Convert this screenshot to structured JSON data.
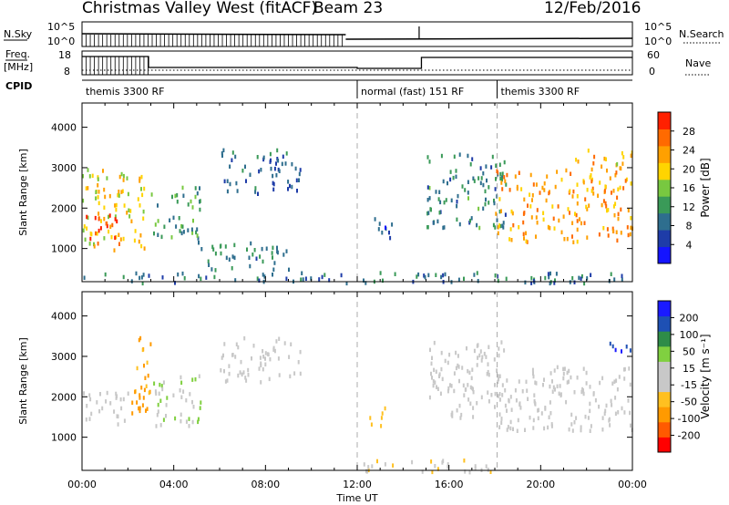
{
  "header": {
    "title": "Christmas Valley West (fitACF)",
    "beam": "Beam 23",
    "date": "12/Feb/2016"
  },
  "top_panels": {
    "nsky_label": "N.Sky",
    "nsky_ticks": [
      "10^5",
      "10^0"
    ],
    "nsearch_label": "N.Search",
    "nsearch_ticks": [
      "10^5",
      "10^0"
    ],
    "freq_label": "Freq.",
    "freq_unit": "[MHz]",
    "freq_ticks": [
      "18",
      "8"
    ],
    "nave_label": "Nave",
    "nave_ticks": [
      "60",
      "0"
    ],
    "cpid_label": "CPID",
    "cpid_segments": [
      {
        "label": "themis 3300 RF",
        "start_hour": 0.0
      },
      {
        "label": "normal (fast) 151 RF",
        "start_hour": 12.0
      },
      {
        "label": "themis 3300 RF",
        "start_hour": 18.1
      }
    ]
  },
  "colors": {
    "power_scale": [
      "#1414ff",
      "#1e3ca8",
      "#2e6e8e",
      "#3a9a58",
      "#78c840",
      "#ffd400",
      "#ffa000",
      "#ff6a00",
      "#ff2000"
    ],
    "velocity_scale": [
      "#ff0000",
      "#ff5a00",
      "#ff9a00",
      "#ffc020",
      "#c8c8c8",
      "#c8c8c8",
      "#80d040",
      "#2e8c48",
      "#1e50b4",
      "#1a1aff"
    ],
    "vline": "#999999"
  },
  "chart_data": [
    {
      "type": "heatmap",
      "panel": "power",
      "xlabel": "Time UT",
      "ylabel": "Slant Range [km]",
      "xlim": [
        0,
        24
      ],
      "ylim": [
        180,
        4600
      ],
      "y_ticks": [
        1000,
        2000,
        3000,
        4000
      ],
      "x_tick_labels": [
        "00:00",
        "04:00",
        "08:00",
        "12:00",
        "16:00",
        "20:00",
        "00:00"
      ],
      "colorbar": {
        "label": "Power [dB]",
        "ticks": [
          "28",
          "24",
          "20",
          "16",
          "12",
          "8",
          "4"
        ],
        "range": [
          0,
          30
        ]
      },
      "regions": [
        {
          "t": [
            0.0,
            2.8
          ],
          "r": [
            1000,
            3000
          ],
          "v": 18
        },
        {
          "t": [
            0.0,
            1.6
          ],
          "r": [
            1100,
            1900
          ],
          "v": 26
        },
        {
          "t": [
            3.0,
            5.2
          ],
          "r": [
            1300,
            2600
          ],
          "v": 12
        },
        {
          "t": [
            5.0,
            9.0
          ],
          "r": [
            500,
            1200
          ],
          "v": 10
        },
        {
          "t": [
            6.0,
            9.5
          ],
          "r": [
            2400,
            3500
          ],
          "v": 8
        },
        {
          "t": [
            12.5,
            13.5
          ],
          "r": [
            1200,
            1800
          ],
          "v": 6
        },
        {
          "t": [
            15.0,
            18.5
          ],
          "r": [
            1500,
            3400
          ],
          "v": 10
        },
        {
          "t": [
            18.0,
            24.0
          ],
          "r": [
            1200,
            3000
          ],
          "v": 22
        },
        {
          "t": [
            21.5,
            24.0
          ],
          "r": [
            3000,
            3500
          ],
          "v": 20
        },
        {
          "t": [
            0.0,
            24.0
          ],
          "r": [
            180,
            450
          ],
          "v": 8
        }
      ]
    },
    {
      "type": "heatmap",
      "panel": "velocity",
      "xlabel": "Time UT",
      "ylabel": "Slant Range [km]",
      "xlim": [
        0,
        24
      ],
      "ylim": [
        180,
        4600
      ],
      "y_ticks": [
        1000,
        2000,
        3000,
        4000
      ],
      "x_tick_labels": [
        "00:00",
        "04:00",
        "08:00",
        "12:00",
        "16:00",
        "20:00",
        "00:00"
      ],
      "colorbar": {
        "label": "Velocity [m s⁻¹]",
        "ticks": [
          "200",
          "100",
          "50",
          "15",
          "-15",
          "-50",
          "-100",
          "-200"
        ],
        "range": [
          -250,
          250
        ]
      },
      "regions": [
        {
          "t": [
            0.0,
            2.0
          ],
          "r": [
            1300,
            2200
          ],
          "v": 0
        },
        {
          "t": [
            2.0,
            3.0
          ],
          "r": [
            1600,
            3600
          ],
          "v": -120
        },
        {
          "t": [
            3.0,
            5.2
          ],
          "r": [
            1300,
            2600
          ],
          "v": 40
        },
        {
          "t": [
            6.0,
            9.5
          ],
          "r": [
            2400,
            3500
          ],
          "v": 0
        },
        {
          "t": [
            12.5,
            13.3
          ],
          "r": [
            1300,
            1800
          ],
          "v": -80
        },
        {
          "t": [
            15.0,
            18.5
          ],
          "r": [
            1500,
            3400
          ],
          "v": 0
        },
        {
          "t": [
            18.0,
            24.0
          ],
          "r": [
            1200,
            2800
          ],
          "v": 0
        },
        {
          "t": [
            23.0,
            24.0
          ],
          "r": [
            3100,
            3500
          ],
          "v": 220
        },
        {
          "t": [
            12.0,
            18.0
          ],
          "r": [
            180,
            500
          ],
          "v": -40
        }
      ]
    }
  ]
}
